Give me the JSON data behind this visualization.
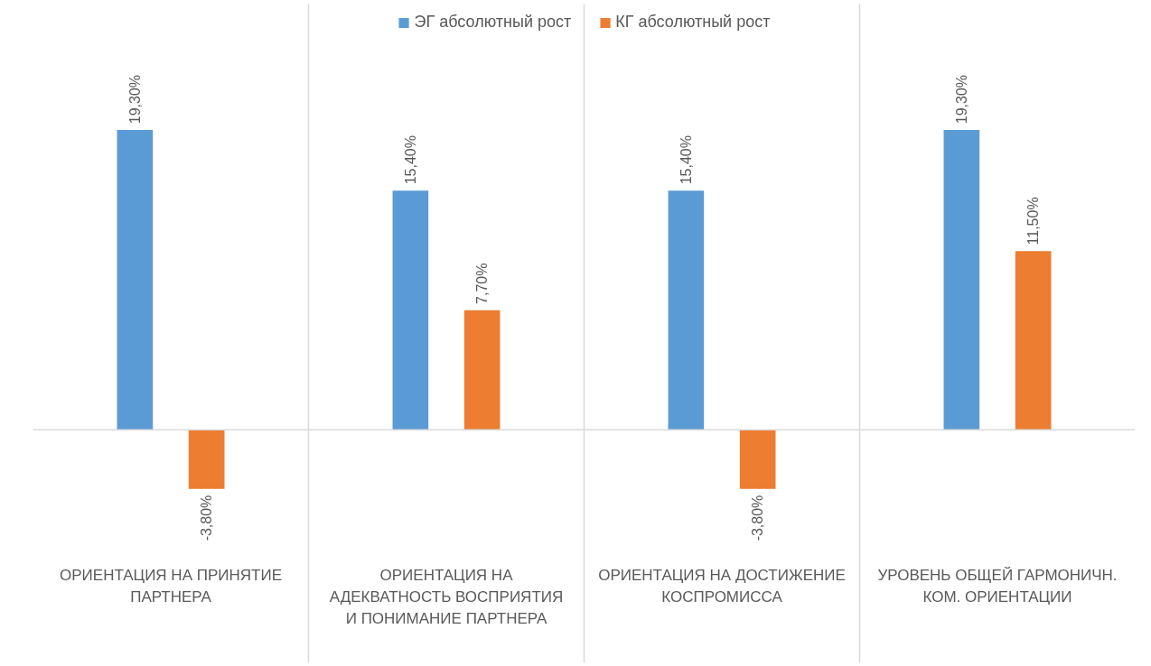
{
  "chart_data": {
    "type": "bar",
    "categories": [
      "ОРИЕНТАЦИЯ НА ПРИНЯТИЕ ПАРТНЕРА",
      "ОРИЕНТАЦИЯ НА АДЕКВАТНОСТЬ ВОСПРИЯТИЯ И ПОНИМАНИЕ ПАРТНЕРА",
      "ОРИЕНТАЦИЯ НА ДОСТИЖЕНИЕ КОСПРОМИССА",
      "УРОВЕНЬ ОБЩЕЙ ГАРМОНИЧН. КОМ. ОРИЕНТАЦИИ"
    ],
    "series": [
      {
        "name": "ЭГ абсолютный рост",
        "color": "#5b9bd5",
        "values": [
          19.3,
          15.4,
          15.4,
          19.3
        ],
        "value_labels": [
          "19,30%",
          "15,40%",
          "15,40%",
          "19,30%"
        ]
      },
      {
        "name": "КГ абсолютный рост",
        "color": "#ed7d31",
        "values": [
          -3.8,
          7.7,
          -3.8,
          11.5
        ],
        "value_labels": [
          "-3,80%",
          "7,70%",
          "-3,80%",
          "11,50%"
        ]
      }
    ],
    "grid": "x",
    "legend": "top"
  }
}
